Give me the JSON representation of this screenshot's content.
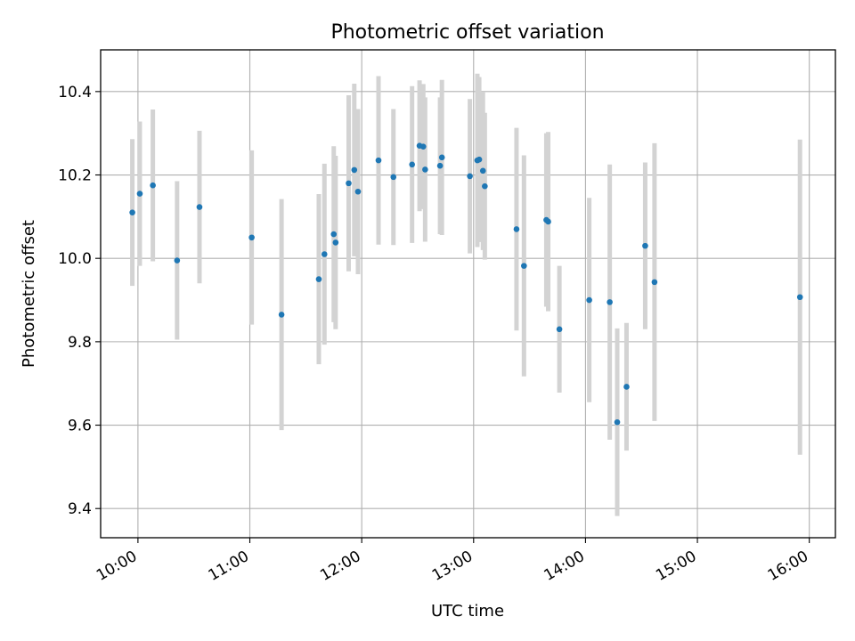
{
  "chart_data": {
    "type": "scatter",
    "title": "Photometric offset variation",
    "xlabel": "UTC time",
    "ylabel": "Photometric offset",
    "x_ticks": [
      "10:00",
      "11:00",
      "12:00",
      "13:00",
      "14:00",
      "15:00",
      "16:00"
    ],
    "y_ticks": [
      "9.4",
      "9.6",
      "9.8",
      "10.0",
      "10.2",
      "10.4"
    ],
    "xlim": [
      "09:40",
      "16:14"
    ],
    "ylim": [
      9.33,
      10.5
    ],
    "grid": true,
    "colors": {
      "point": "#1f77b4",
      "errorbar": "#d3d3d3",
      "grid": "#b0b0b0"
    },
    "series": [
      {
        "points": [
          {
            "x": "09:57",
            "y": 10.11,
            "yerr": 0.176
          },
          {
            "x": "10:01",
            "y": 10.155,
            "yerr": 0.173
          },
          {
            "x": "10:08",
            "y": 10.175,
            "yerr": 0.182
          },
          {
            "x": "10:21",
            "y": 9.995,
            "yerr": 0.19
          },
          {
            "x": "10:33",
            "y": 10.123,
            "yerr": 0.183
          },
          {
            "x": "11:01",
            "y": 10.05,
            "yerr": 0.209
          },
          {
            "x": "11:17",
            "y": 9.865,
            "yerr": 0.277
          },
          {
            "x": "11:37",
            "y": 9.95,
            "yerr": 0.204
          },
          {
            "x": "11:40",
            "y": 10.01,
            "yerr": 0.217
          },
          {
            "x": "11:45",
            "y": 10.058,
            "yerr": 0.211
          },
          {
            "x": "11:46",
            "y": 10.038,
            "yerr": 0.208
          },
          {
            "x": "11:53",
            "y": 10.18,
            "yerr": 0.211
          },
          {
            "x": "11:56",
            "y": 10.212,
            "yerr": 0.207
          },
          {
            "x": "11:58",
            "y": 10.16,
            "yerr": 0.198
          },
          {
            "x": "12:09",
            "y": 10.235,
            "yerr": 0.202
          },
          {
            "x": "12:17",
            "y": 10.195,
            "yerr": 0.163
          },
          {
            "x": "12:27",
            "y": 10.225,
            "yerr": 0.188
          },
          {
            "x": "12:31",
            "y": 10.27,
            "yerr": 0.157
          },
          {
            "x": "12:33",
            "y": 10.268,
            "yerr": 0.15
          },
          {
            "x": "12:34",
            "y": 10.213,
            "yerr": 0.173
          },
          {
            "x": "12:42",
            "y": 10.222,
            "yerr": 0.164
          },
          {
            "x": "12:43",
            "y": 10.242,
            "yerr": 0.186
          },
          {
            "x": "12:58",
            "y": 10.197,
            "yerr": 0.185
          },
          {
            "x": "13:02",
            "y": 10.235,
            "yerr": 0.208
          },
          {
            "x": "13:03",
            "y": 10.237,
            "yerr": 0.198
          },
          {
            "x": "13:05",
            "y": 10.21,
            "yerr": 0.19
          },
          {
            "x": "13:06",
            "y": 10.173,
            "yerr": 0.176
          },
          {
            "x": "13:23",
            "y": 10.07,
            "yerr": 0.243
          },
          {
            "x": "13:27",
            "y": 9.982,
            "yerr": 0.265
          },
          {
            "x": "13:39",
            "y": 10.092,
            "yerr": 0.208
          },
          {
            "x": "13:40",
            "y": 10.088,
            "yerr": 0.215
          },
          {
            "x": "13:46",
            "y": 9.83,
            "yerr": 0.152
          },
          {
            "x": "14:02",
            "y": 9.9,
            "yerr": 0.245
          },
          {
            "x": "14:13",
            "y": 9.895,
            "yerr": 0.33
          },
          {
            "x": "14:17",
            "y": 9.607,
            "yerr": 0.225
          },
          {
            "x": "14:22",
            "y": 9.692,
            "yerr": 0.153
          },
          {
            "x": "14:32",
            "y": 10.03,
            "yerr": 0.2
          },
          {
            "x": "14:37",
            "y": 9.943,
            "yerr": 0.333
          },
          {
            "x": "15:55",
            "y": 9.907,
            "yerr": 0.378
          }
        ]
      }
    ]
  }
}
